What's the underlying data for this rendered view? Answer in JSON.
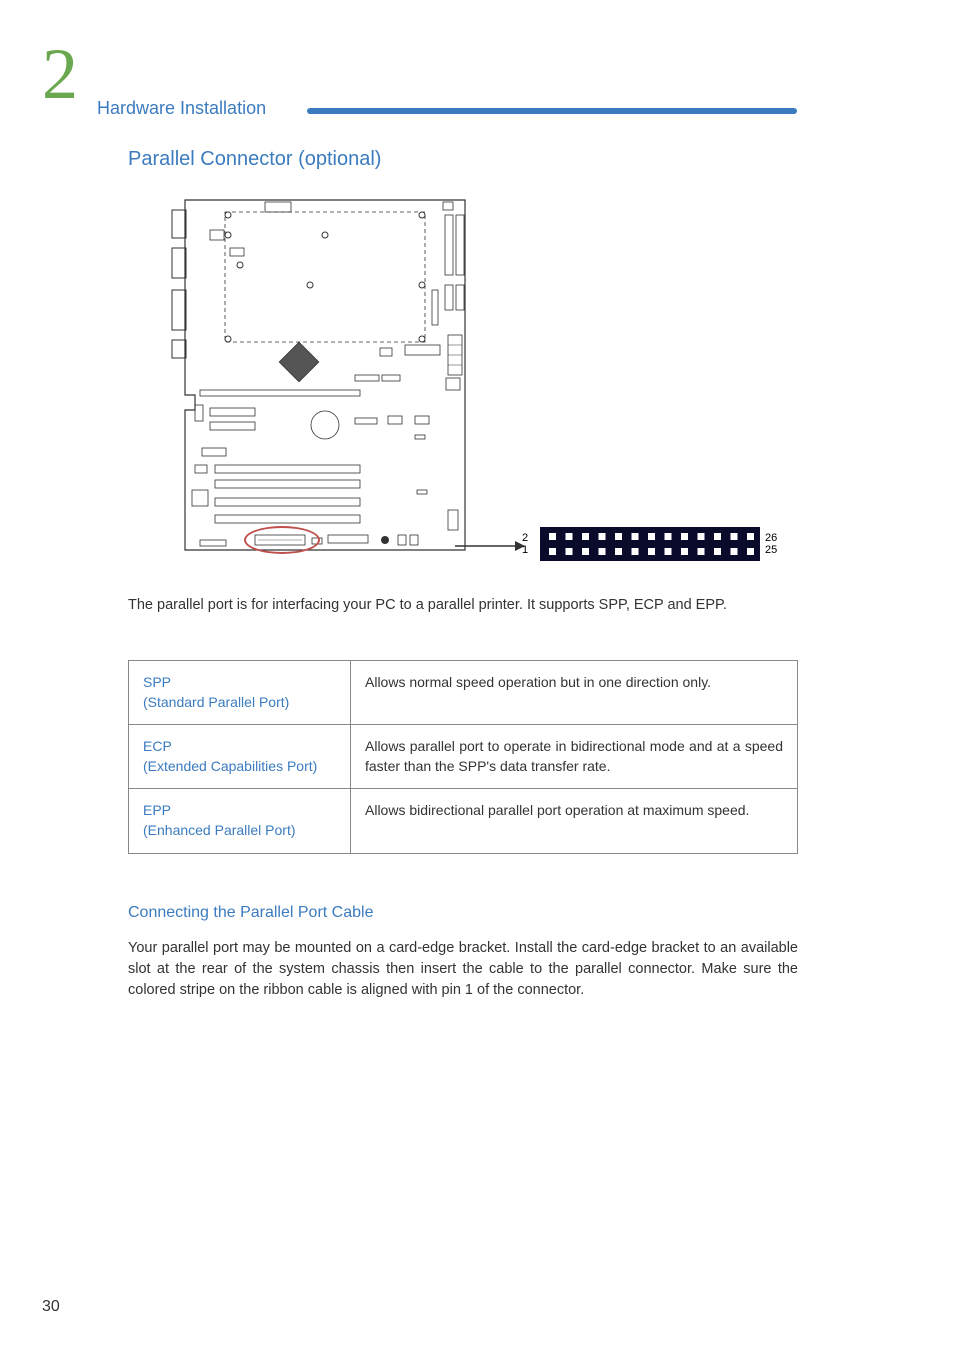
{
  "colors": {
    "accent_blue": "#3b7bbf",
    "chapter_green": "#6aa84f",
    "highlight_red": "#c0504d",
    "connector_bg": "#0a0a2a",
    "connector_pin": "#ffffff",
    "table_border": "#888888",
    "body_text": "#333333",
    "diagram_stroke": "#333333"
  },
  "chapter_number": "2",
  "header_title": "Hardware Installation",
  "section_title": "Parallel Connector (optional)",
  "pins": {
    "top_left": "2",
    "bottom_left": "1",
    "top_right": "26",
    "bottom_right": "25"
  },
  "body_paragraph_1": "The parallel port is for interfacing your PC to a parallel printer. It supports SPP, ECP and EPP.",
  "table": {
    "rows": [
      {
        "mode_abbr": "SPP",
        "mode_full": "(Standard Parallel Port)",
        "description": "Allows normal speed operation but in one direction only."
      },
      {
        "mode_abbr": "ECP",
        "mode_full": "(Extended Capabilities Port)",
        "description": "Allows parallel port to operate in bidirectional mode and at a speed faster than the SPP's data transfer rate."
      },
      {
        "mode_abbr": "EPP",
        "mode_full": "(Enhanced Parallel Port)",
        "description": "Allows bidirectional parallel port operation at maximum speed."
      }
    ]
  },
  "sub_heading": "Connecting the Parallel Port Cable",
  "body_paragraph_2": "Your parallel port may be mounted on a card-edge bracket. Install the card-edge bracket to an available slot at the rear of the system chassis then insert the cable to the parallel connector. Make sure the colored stripe on the ribbon cable is aligned with pin 1 of the connector.",
  "page_number": "30"
}
